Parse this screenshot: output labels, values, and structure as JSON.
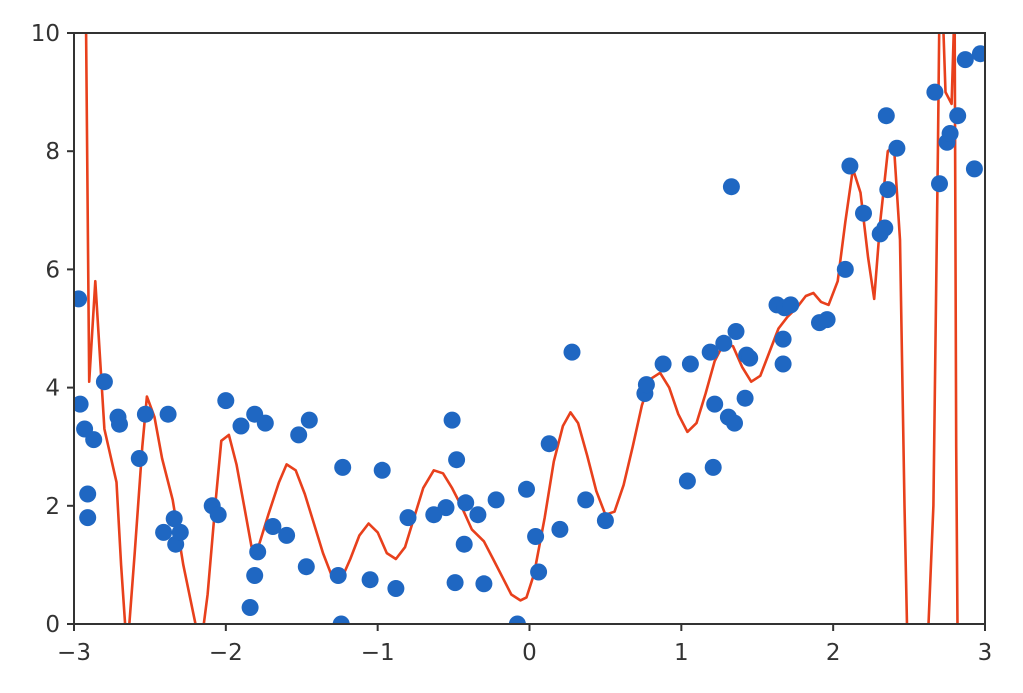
{
  "chart_data": {
    "type": "scatter",
    "title": "",
    "xlabel": "",
    "ylabel": "",
    "xlim": [
      -3,
      3
    ],
    "ylim": [
      0,
      10
    ],
    "x_ticks": [
      -3,
      -2,
      -1,
      0,
      1,
      2,
      3
    ],
    "x_tick_labels": [
      "−3",
      "−2",
      "−1",
      "0",
      "1",
      "2",
      "3"
    ],
    "y_ticks": [
      0,
      2,
      4,
      6,
      8,
      10
    ],
    "y_tick_labels": [
      "0",
      "2",
      "4",
      "6",
      "8",
      "10"
    ],
    "grid": false,
    "legend": false,
    "scatter_color": "#1f67c2",
    "line_color": "#e8401c",
    "series": [
      {
        "kind": "scatter",
        "points": [
          [
            -2.97,
            5.5
          ],
          [
            -2.96,
            3.72
          ],
          [
            -2.93,
            3.3
          ],
          [
            -2.91,
            2.2
          ],
          [
            -2.91,
            1.8
          ],
          [
            -2.87,
            3.12
          ],
          [
            -2.8,
            4.1
          ],
          [
            -2.71,
            3.5
          ],
          [
            -2.7,
            3.38
          ],
          [
            -2.57,
            2.8
          ],
          [
            -2.53,
            3.55
          ],
          [
            -2.41,
            1.55
          ],
          [
            -2.38,
            3.55
          ],
          [
            -2.34,
            1.78
          ],
          [
            -2.33,
            1.35
          ],
          [
            -2.3,
            1.55
          ],
          [
            -2.09,
            2.0
          ],
          [
            -2.05,
            1.85
          ],
          [
            -2.0,
            3.78
          ],
          [
            -1.9,
            3.35
          ],
          [
            -1.84,
            0.28
          ],
          [
            -1.81,
            3.55
          ],
          [
            -1.81,
            0.82
          ],
          [
            -1.79,
            1.22
          ],
          [
            -1.74,
            3.4
          ],
          [
            -1.69,
            1.65
          ],
          [
            -1.6,
            1.5
          ],
          [
            -1.52,
            3.2
          ],
          [
            -1.47,
            0.97
          ],
          [
            -1.45,
            3.45
          ],
          [
            -1.26,
            0.82
          ],
          [
            -1.24,
            0.0
          ],
          [
            -1.23,
            2.65
          ],
          [
            -1.05,
            0.75
          ],
          [
            -0.97,
            2.6
          ],
          [
            -0.88,
            0.6
          ],
          [
            -0.8,
            1.8
          ],
          [
            -0.63,
            1.85
          ],
          [
            -0.55,
            1.97
          ],
          [
            -0.51,
            3.45
          ],
          [
            -0.49,
            0.7
          ],
          [
            -0.48,
            2.78
          ],
          [
            -0.43,
            1.35
          ],
          [
            -0.42,
            2.05
          ],
          [
            -0.34,
            1.85
          ],
          [
            -0.3,
            0.68
          ],
          [
            -0.22,
            2.1
          ],
          [
            -0.08,
            0.0
          ],
          [
            -0.02,
            2.28
          ],
          [
            0.04,
            1.48
          ],
          [
            0.06,
            0.88
          ],
          [
            0.13,
            3.05
          ],
          [
            0.2,
            1.6
          ],
          [
            0.28,
            4.6
          ],
          [
            0.37,
            2.1
          ],
          [
            0.5,
            1.75
          ],
          [
            0.76,
            3.9
          ],
          [
            0.77,
            4.05
          ],
          [
            0.88,
            4.4
          ],
          [
            1.04,
            2.42
          ],
          [
            1.06,
            4.4
          ],
          [
            1.19,
            4.6
          ],
          [
            1.21,
            2.65
          ],
          [
            1.22,
            3.72
          ],
          [
            1.28,
            4.75
          ],
          [
            1.31,
            3.5
          ],
          [
            1.33,
            7.4
          ],
          [
            1.35,
            3.4
          ],
          [
            1.36,
            4.95
          ],
          [
            1.42,
            3.82
          ],
          [
            1.43,
            4.55
          ],
          [
            1.45,
            4.5
          ],
          [
            1.63,
            5.4
          ],
          [
            1.67,
            4.4
          ],
          [
            1.67,
            4.82
          ],
          [
            1.68,
            5.35
          ],
          [
            1.72,
            5.4
          ],
          [
            1.91,
            5.1
          ],
          [
            1.96,
            5.15
          ],
          [
            2.08,
            6.0
          ],
          [
            2.11,
            7.75
          ],
          [
            2.2,
            6.95
          ],
          [
            2.31,
            6.6
          ],
          [
            2.34,
            6.7
          ],
          [
            2.35,
            8.6
          ],
          [
            2.36,
            7.35
          ],
          [
            2.42,
            8.05
          ],
          [
            2.67,
            9.0
          ],
          [
            2.7,
            7.45
          ],
          [
            2.75,
            8.15
          ],
          [
            2.77,
            8.3
          ],
          [
            2.82,
            8.6
          ],
          [
            2.87,
            9.55
          ],
          [
            2.93,
            7.7
          ],
          [
            2.97,
            9.65
          ]
        ]
      },
      {
        "kind": "line",
        "points": [
          [
            -2.94,
            10.5
          ],
          [
            -2.92,
            10.0
          ],
          [
            -2.9,
            4.1
          ],
          [
            -2.86,
            5.8
          ],
          [
            -2.8,
            3.3
          ],
          [
            -2.72,
            2.4
          ],
          [
            -2.69,
            1.0
          ],
          [
            -2.65,
            -0.5
          ],
          [
            -2.6,
            1.2
          ],
          [
            -2.55,
            3.0
          ],
          [
            -2.52,
            3.85
          ],
          [
            -2.47,
            3.5
          ],
          [
            -2.42,
            2.8
          ],
          [
            -2.35,
            2.1
          ],
          [
            -2.28,
            1.0
          ],
          [
            -2.2,
            0.0
          ],
          [
            -2.17,
            -0.5
          ],
          [
            -2.12,
            0.5
          ],
          [
            -2.07,
            2.0
          ],
          [
            -2.03,
            3.1
          ],
          [
            -1.98,
            3.2
          ],
          [
            -1.93,
            2.7
          ],
          [
            -1.88,
            2.0
          ],
          [
            -1.83,
            1.3
          ],
          [
            -1.78,
            1.35
          ],
          [
            -1.72,
            1.85
          ],
          [
            -1.65,
            2.4
          ],
          [
            -1.6,
            2.7
          ],
          [
            -1.54,
            2.6
          ],
          [
            -1.48,
            2.2
          ],
          [
            -1.42,
            1.7
          ],
          [
            -1.36,
            1.2
          ],
          [
            -1.3,
            0.8
          ],
          [
            -1.24,
            0.75
          ],
          [
            -1.18,
            1.1
          ],
          [
            -1.12,
            1.5
          ],
          [
            -1.06,
            1.7
          ],
          [
            -1.0,
            1.55
          ],
          [
            -0.94,
            1.2
          ],
          [
            -0.88,
            1.1
          ],
          [
            -0.82,
            1.3
          ],
          [
            -0.76,
            1.8
          ],
          [
            -0.7,
            2.3
          ],
          [
            -0.63,
            2.6
          ],
          [
            -0.57,
            2.55
          ],
          [
            -0.51,
            2.3
          ],
          [
            -0.45,
            2.0
          ],
          [
            -0.38,
            1.6
          ],
          [
            -0.3,
            1.4
          ],
          [
            -0.24,
            1.1
          ],
          [
            -0.18,
            0.8
          ],
          [
            -0.12,
            0.5
          ],
          [
            -0.06,
            0.4
          ],
          [
            -0.02,
            0.45
          ],
          [
            0.03,
            0.85
          ],
          [
            0.1,
            1.8
          ],
          [
            0.16,
            2.75
          ],
          [
            0.22,
            3.35
          ],
          [
            0.27,
            3.58
          ],
          [
            0.32,
            3.4
          ],
          [
            0.38,
            2.85
          ],
          [
            0.44,
            2.25
          ],
          [
            0.5,
            1.85
          ],
          [
            0.56,
            1.9
          ],
          [
            0.62,
            2.35
          ],
          [
            0.68,
            3.0
          ],
          [
            0.74,
            3.7
          ],
          [
            0.8,
            4.15
          ],
          [
            0.86,
            4.25
          ],
          [
            0.92,
            4.0
          ],
          [
            0.98,
            3.55
          ],
          [
            1.04,
            3.25
          ],
          [
            1.1,
            3.4
          ],
          [
            1.16,
            3.9
          ],
          [
            1.22,
            4.45
          ],
          [
            1.28,
            4.75
          ],
          [
            1.34,
            4.7
          ],
          [
            1.4,
            4.35
          ],
          [
            1.46,
            4.1
          ],
          [
            1.52,
            4.2
          ],
          [
            1.58,
            4.6
          ],
          [
            1.64,
            5.0
          ],
          [
            1.7,
            5.2
          ],
          [
            1.76,
            5.35
          ],
          [
            1.82,
            5.55
          ],
          [
            1.87,
            5.6
          ],
          [
            1.92,
            5.45
          ],
          [
            1.97,
            5.4
          ],
          [
            2.03,
            5.8
          ],
          [
            2.08,
            6.8
          ],
          [
            2.13,
            7.7
          ],
          [
            2.18,
            7.3
          ],
          [
            2.23,
            6.2
          ],
          [
            2.27,
            5.5
          ],
          [
            2.31,
            6.8
          ],
          [
            2.36,
            8.0
          ],
          [
            2.4,
            8.1
          ],
          [
            2.44,
            6.5
          ],
          [
            2.47,
            2.0
          ],
          [
            2.49,
            -0.5
          ],
          [
            2.62,
            -0.5
          ],
          [
            2.66,
            2.0
          ],
          [
            2.69,
            8.0
          ],
          [
            2.7,
            10.5
          ],
          [
            2.72,
            10.5
          ],
          [
            2.74,
            9.0
          ],
          [
            2.78,
            8.8
          ],
          [
            2.8,
            10.5
          ],
          [
            2.81,
            3.0
          ],
          [
            2.82,
            -0.5
          ]
        ]
      }
    ]
  }
}
